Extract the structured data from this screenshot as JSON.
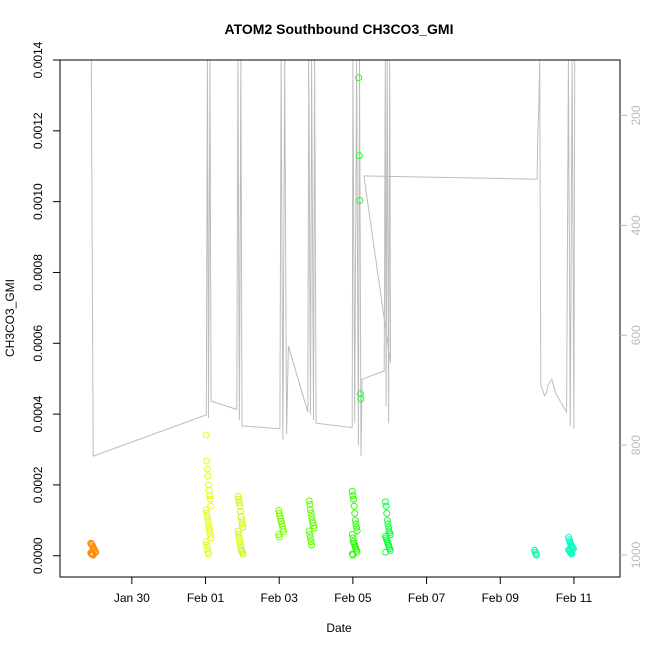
{
  "chart_data": {
    "type": "scatter",
    "title": "ATOM2 Southbound CH3CO3_GMI",
    "xlabel": "Date",
    "ylabel": "CH3CO3_GMI",
    "x_range_days": [
      -2.95,
      12.25
    ],
    "ylim": [
      -6e-05,
      0.0014
    ],
    "y_ticks": [
      "0.0000",
      "0.0002",
      "0.0004",
      "0.0006",
      "0.0008",
      "0.0010",
      "0.0012",
      "0.0014"
    ],
    "y_tick_values": [
      0,
      0.0002,
      0.0004,
      0.0006,
      0.0008,
      0.001,
      0.0012,
      0.0014
    ],
    "x_ticks": [
      {
        "label": "Jan 30",
        "day": -1
      },
      {
        "label": "Feb 01",
        "day": 1
      },
      {
        "label": "Feb 03",
        "day": 3
      },
      {
        "label": "Feb 05",
        "day": 5
      },
      {
        "label": "Feb 07",
        "day": 7
      },
      {
        "label": "Feb 09",
        "day": 9
      },
      {
        "label": "Feb 11",
        "day": 11
      }
    ],
    "right_axis": {
      "ticks": [
        "200",
        "400",
        "600",
        "800",
        "1000"
      ],
      "values": [
        200,
        400,
        600,
        800,
        1000
      ],
      "range": [
        99,
        1040
      ],
      "reversed": true
    },
    "clusters": [
      {
        "day": -2.05,
        "color": "#ff8c00",
        "values": [
          3.54e-05,
          3.3e-05,
          3.1e-05,
          2.7e-05,
          2.3e-05,
          2e-05,
          1.7e-05,
          1.3e-05,
          1e-05,
          8e-06,
          6e-06,
          4e-06,
          3e-06,
          2e-06
        ]
      },
      {
        "day": 1.08,
        "color": "#e5ff00",
        "values": [
          0.000341,
          0.000268,
          0.000245,
          0.000225,
          0.0002,
          0.000185,
          0.00017,
          0.00016,
          0.00014,
          0.00013,
          0.00012,
          0.00011,
          0.0001,
          9e-05,
          8e-05,
          7e-05,
          6e-05,
          5e-05,
          4e-05,
          3e-05,
          2e-05,
          1e-05,
          5e-06
        ]
      },
      {
        "day": 1.95,
        "color": "#c9ff00",
        "values": [
          0.000168,
          0.00016,
          0.00015,
          0.00014,
          0.000125,
          0.00011,
          0.0001,
          9e-05,
          8e-05,
          7e-05,
          6e-05,
          5e-05,
          4e-05,
          3e-05,
          2e-05,
          1.5e-05,
          1e-05,
          5e-06
        ]
      },
      {
        "day": 3.05,
        "color": "#7aff00",
        "values": [
          0.000128,
          0.00012,
          0.000112,
          0.000105,
          9.8e-05,
          9e-05,
          8.3e-05,
          7.5e-05,
          6.8e-05,
          6e-05,
          5.3e-05
        ]
      },
      {
        "day": 3.88,
        "color": "#5cff00",
        "values": [
          0.000155,
          0.000145,
          0.00013,
          0.00012,
          0.00011,
          0.0001,
          9.2e-05,
          8.5e-05,
          7.8e-05,
          7e-05,
          6e-05,
          5e-05,
          4e-05,
          3e-05
        ]
      },
      {
        "day": 5.05,
        "color": "#2bff00",
        "values": [
          0.000182,
          0.00017,
          0.00016,
          0.00014,
          0.00012,
          0.0001,
          9e-05,
          8e-05,
          7e-05,
          6e-05,
          5e-05,
          4e-05,
          3.5e-05,
          3e-05,
          2.5e-05,
          2e-05,
          1.5e-05,
          1e-05,
          5e-06,
          2e-06
        ]
      },
      {
        "day": 5.22,
        "color": "#20ff30",
        "values": [
          0.00135,
          0.00113,
          0.001003,
          0.000458,
          0.000443
        ]
      },
      {
        "day": 5.95,
        "color": "#0fff3a",
        "values": [
          0.000152,
          0.00014,
          0.00012,
          0.0001,
          9e-05,
          8e-05,
          7e-05,
          6.5e-05,
          6e-05,
          5.5e-05,
          5e-05,
          4.5e-05,
          4e-05,
          3.5e-05,
          3e-05,
          2.5e-05,
          2e-05,
          1.5e-05,
          1e-05
        ]
      },
      {
        "day": 10.0,
        "color": "#00ffa0",
        "values": [
          1.5e-05,
          1e-05,
          5e-06,
          2e-06
        ]
      },
      {
        "day": 10.92,
        "color": "#00ffc0",
        "values": [
          5.2e-05,
          4.5e-05,
          4e-05,
          3.5e-05,
          3e-05,
          2.8e-05,
          2.5e-05,
          2.2e-05,
          2e-05,
          1.7e-05,
          1.5e-05,
          1.2e-05,
          1e-05,
          7e-06,
          5e-06
        ]
      }
    ],
    "pressure_track": [
      [
        -2.1,
        99
      ],
      [
        -2.05,
        820
      ],
      [
        1.02,
        745
      ],
      [
        1.05,
        99
      ],
      [
        1.08,
        750
      ],
      [
        1.12,
        99
      ],
      [
        1.15,
        720
      ],
      [
        1.85,
        735
      ],
      [
        1.88,
        99
      ],
      [
        1.92,
        755
      ],
      [
        1.96,
        99
      ],
      [
        1.99,
        765
      ],
      [
        3.02,
        770
      ],
      [
        3.05,
        99
      ],
      [
        3.1,
        790
      ],
      [
        3.15,
        99
      ],
      [
        3.2,
        780
      ],
      [
        3.25,
        620
      ],
      [
        3.78,
        740
      ],
      [
        3.8,
        99
      ],
      [
        3.85,
        745
      ],
      [
        3.88,
        99
      ],
      [
        3.93,
        755
      ],
      [
        3.96,
        99
      ],
      [
        4.0,
        760
      ],
      [
        4.98,
        768
      ],
      [
        5.0,
        99
      ],
      [
        5.05,
        760
      ],
      [
        5.1,
        99
      ],
      [
        5.15,
        800
      ],
      [
        5.18,
        99
      ],
      [
        5.22,
        820
      ],
      [
        5.25,
        680
      ],
      [
        5.85,
        665
      ],
      [
        5.88,
        99
      ],
      [
        5.9,
        730
      ],
      [
        5.93,
        99
      ],
      [
        5.97,
        760
      ],
      [
        6.0,
        99
      ],
      [
        6.02,
        650
      ],
      [
        5.3,
        310
      ],
      [
        10.0,
        316
      ],
      [
        10.02,
        230
      ],
      [
        10.05,
        180
      ],
      [
        10.07,
        99
      ],
      [
        10.1,
        690
      ],
      [
        10.15,
        700
      ],
      [
        10.2,
        710
      ],
      [
        10.25,
        706
      ],
      [
        10.3,
        690
      ],
      [
        10.4,
        680
      ],
      [
        10.5,
        705
      ],
      [
        10.8,
        740
      ],
      [
        10.85,
        99
      ],
      [
        10.9,
        765
      ],
      [
        10.95,
        99
      ],
      [
        11.0,
        770
      ],
      [
        11.02,
        99
      ]
    ]
  }
}
